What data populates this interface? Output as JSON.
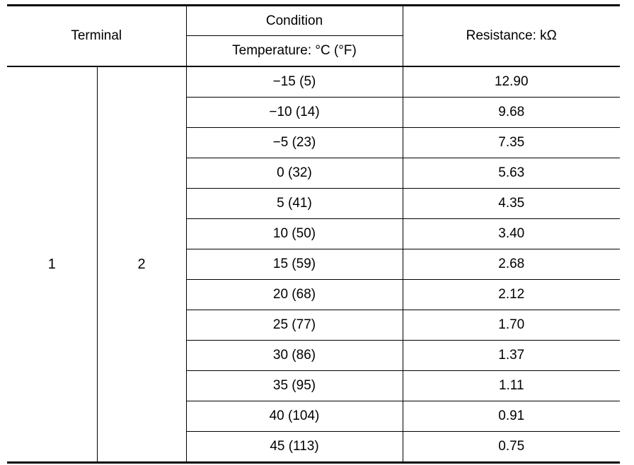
{
  "table": {
    "header": {
      "terminal": "Terminal",
      "condition": "Condition",
      "temperature": "Temperature: °C (°F)",
      "resistance": "Resistance: kΩ"
    },
    "terminals": {
      "a": "1",
      "b": "2"
    },
    "rows": [
      {
        "temp": "−15 (5)",
        "resistance": "12.90"
      },
      {
        "temp": "−10 (14)",
        "resistance": "9.68"
      },
      {
        "temp": "−5 (23)",
        "resistance": "7.35"
      },
      {
        "temp": "0 (32)",
        "resistance": "5.63"
      },
      {
        "temp": "5 (41)",
        "resistance": "4.35"
      },
      {
        "temp": "10 (50)",
        "resistance": "3.40"
      },
      {
        "temp": "15 (59)",
        "resistance": "2.68"
      },
      {
        "temp": "20 (68)",
        "resistance": "2.12"
      },
      {
        "temp": "25 (77)",
        "resistance": "1.70"
      },
      {
        "temp": "30 (86)",
        "resistance": "1.37"
      },
      {
        "temp": "35 (95)",
        "resistance": "1.11"
      },
      {
        "temp": "40 (104)",
        "resistance": "0.91"
      },
      {
        "temp": "45 (113)",
        "resistance": "0.75"
      }
    ]
  }
}
